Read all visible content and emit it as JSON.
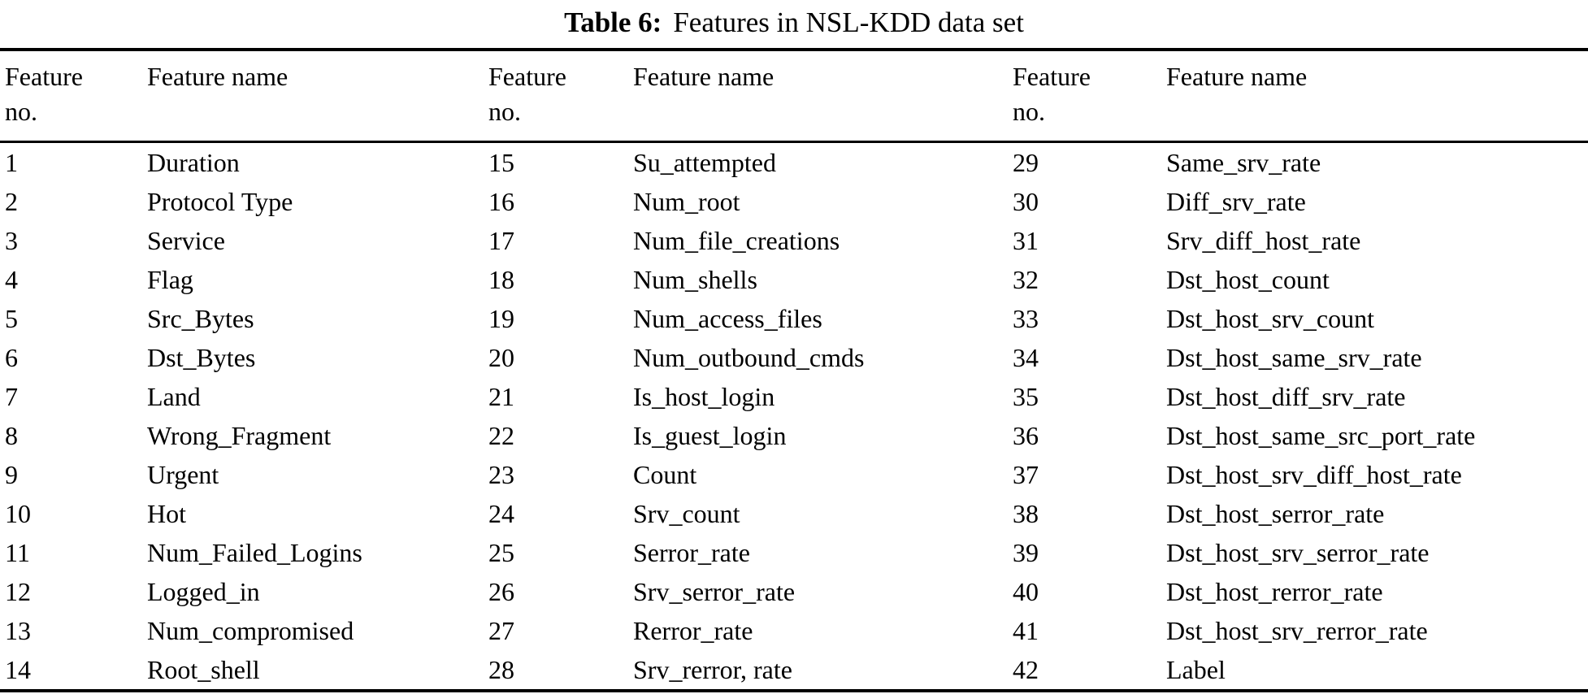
{
  "title": {
    "label": "Table 6:",
    "caption": "Features in NSL-KDD data set"
  },
  "table": {
    "header": {
      "no_line1": "Feature",
      "no_line2": "no.",
      "name": "Feature name"
    },
    "groups": [
      {
        "entries": [
          {
            "no": "1",
            "name": "Duration"
          },
          {
            "no": "2",
            "name": "Protocol Type"
          },
          {
            "no": "3",
            "name": "Service"
          },
          {
            "no": "4",
            "name": "Flag"
          },
          {
            "no": "5",
            "name": "Src_Bytes"
          },
          {
            "no": "6",
            "name": "Dst_Bytes"
          },
          {
            "no": "7",
            "name": "Land"
          },
          {
            "no": "8",
            "name": "Wrong_Fragment"
          },
          {
            "no": "9",
            "name": "Urgent"
          },
          {
            "no": "10",
            "name": "Hot"
          },
          {
            "no": "11",
            "name": "Num_Failed_Logins"
          },
          {
            "no": "12",
            "name": "Logged_in"
          },
          {
            "no": "13",
            "name": "Num_compromised"
          },
          {
            "no": "14",
            "name": "Root_shell"
          }
        ]
      },
      {
        "entries": [
          {
            "no": "15",
            "name": "Su_attempted"
          },
          {
            "no": "16",
            "name": "Num_root"
          },
          {
            "no": "17",
            "name": "Num_file_creations"
          },
          {
            "no": "18",
            "name": "Num_shells"
          },
          {
            "no": "19",
            "name": "Num_access_files"
          },
          {
            "no": "20",
            "name": "Num_outbound_cmds"
          },
          {
            "no": "21",
            "name": "Is_host_login"
          },
          {
            "no": "22",
            "name": "Is_guest_login"
          },
          {
            "no": "23",
            "name": "Count"
          },
          {
            "no": "24",
            "name": "Srv_count"
          },
          {
            "no": "25",
            "name": "Serror_rate"
          },
          {
            "no": "26",
            "name": "Srv_serror_rate"
          },
          {
            "no": "27",
            "name": "Rerror_rate"
          },
          {
            "no": "28",
            "name": "Srv_rerror, rate"
          }
        ]
      },
      {
        "entries": [
          {
            "no": "29",
            "name": "Same_srv_rate"
          },
          {
            "no": "30",
            "name": "Diff_srv_rate"
          },
          {
            "no": "31",
            "name": "Srv_diff_host_rate"
          },
          {
            "no": "32",
            "name": "Dst_host_count"
          },
          {
            "no": "33",
            "name": "Dst_host_srv_count"
          },
          {
            "no": "34",
            "name": "Dst_host_same_srv_rate"
          },
          {
            "no": "35",
            "name": "Dst_host_diff_srv_rate"
          },
          {
            "no": "36",
            "name": "Dst_host_same_src_port_rate"
          },
          {
            "no": "37",
            "name": "Dst_host_srv_diff_host_rate"
          },
          {
            "no": "38",
            "name": "Dst_host_serror_rate"
          },
          {
            "no": "39",
            "name": "Dst_host_srv_serror_rate"
          },
          {
            "no": "40",
            "name": "Dst_host_rerror_rate"
          },
          {
            "no": "41",
            "name": "Dst_host_srv_rerror_rate"
          },
          {
            "no": "42",
            "name": "Label"
          }
        ]
      }
    ]
  }
}
